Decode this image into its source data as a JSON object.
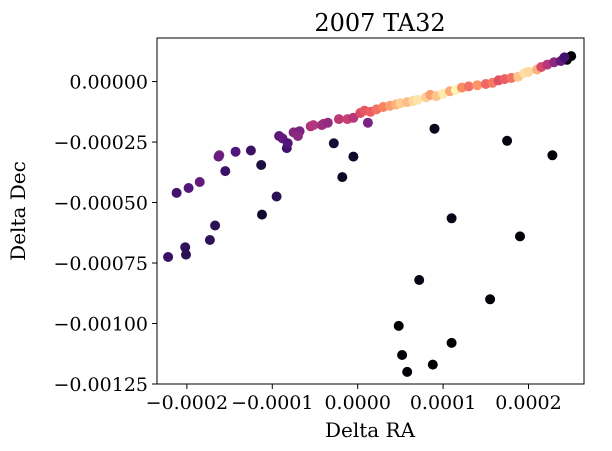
{
  "chart_data": {
    "type": "scatter",
    "title": "2007 TA32",
    "xlabel": "Delta RA",
    "ylabel": "Delta Dec",
    "xlim": [
      -0.000235,
      0.000265
    ],
    "ylim": [
      -0.00125,
      0.00018
    ],
    "x_ticks": [
      -0.0002,
      -0.0001,
      0.0,
      0.0001,
      0.0002
    ],
    "x_tick_labels": [
      "−0.0002",
      "−0.0001",
      "0.0000",
      "0.0001",
      "0.0002"
    ],
    "y_ticks": [
      0.0,
      -0.00025,
      -0.0005,
      -0.00075,
      -0.001,
      -0.00125
    ],
    "y_tick_labels": [
      "0.00000",
      "−0.00025",
      "−0.00050",
      "−0.00075",
      "−0.00100",
      "−0.00125"
    ],
    "grid": false,
    "legend": "none",
    "colormap": "magma",
    "colormap_stops": [
      "#000004",
      "#1c1044",
      "#4f127b",
      "#812581",
      "#b5367a",
      "#e55064",
      "#fb8761",
      "#fec287",
      "#fcfdbf"
    ],
    "points": [
      {
        "x": 0.00025,
        "y": 0.000105,
        "c": 0.0
      },
      {
        "x": 0.000245,
        "y": 9e-05,
        "c": 0.02
      },
      {
        "x": 0.000228,
        "y": -0.000305,
        "c": 0.0
      },
      {
        "x": 0.00019,
        "y": -0.00064,
        "c": 0.0
      },
      {
        "x": 0.000175,
        "y": -0.000245,
        "c": 0.03
      },
      {
        "x": 0.000155,
        "y": -0.0009,
        "c": 0.0
      },
      {
        "x": 0.00011,
        "y": -0.000565,
        "c": 0.04
      },
      {
        "x": 0.00011,
        "y": -0.00108,
        "c": 0.0
      },
      {
        "x": 8.8e-05,
        "y": -0.00117,
        "c": 0.0
      },
      {
        "x": 9e-05,
        "y": -0.000195,
        "c": 0.05
      },
      {
        "x": 7.2e-05,
        "y": -0.00082,
        "c": 0.03
      },
      {
        "x": 5.8e-05,
        "y": -0.0012,
        "c": 0.0
      },
      {
        "x": 5.2e-05,
        "y": -0.00113,
        "c": 0.01
      },
      {
        "x": 4.8e-05,
        "y": -0.00101,
        "c": 0.0
      },
      {
        "x": -1.8e-05,
        "y": -0.000395,
        "c": 0.06
      },
      {
        "x": -5e-06,
        "y": -0.00031,
        "c": 0.08
      },
      {
        "x": -2.8e-05,
        "y": -0.000255,
        "c": 0.1
      },
      {
        "x": -8.3e-05,
        "y": -0.000275,
        "c": 0.22
      },
      {
        "x": -9.5e-05,
        "y": -0.000475,
        "c": 0.16
      },
      {
        "x": -0.000112,
        "y": -0.00055,
        "c": 0.08
      },
      {
        "x": -0.000113,
        "y": -0.000345,
        "c": 0.12
      },
      {
        "x": -0.000125,
        "y": -0.000285,
        "c": 0.2
      },
      {
        "x": -0.000143,
        "y": -0.00029,
        "c": 0.26
      },
      {
        "x": -0.000155,
        "y": -0.00037,
        "c": 0.2
      },
      {
        "x": -0.000162,
        "y": -0.000305,
        "c": 0.35
      },
      {
        "x": -0.000163,
        "y": -0.00031,
        "c": 0.32
      },
      {
        "x": -0.000167,
        "y": -0.000595,
        "c": 0.16
      },
      {
        "x": -0.000173,
        "y": -0.000655,
        "c": 0.18
      },
      {
        "x": -0.000185,
        "y": -0.000415,
        "c": 0.3
      },
      {
        "x": -0.000198,
        "y": -0.00044,
        "c": 0.26
      },
      {
        "x": -0.000202,
        "y": -0.000685,
        "c": 0.18
      },
      {
        "x": -0.000201,
        "y": -0.000715,
        "c": 0.16
      },
      {
        "x": -0.000212,
        "y": -0.00046,
        "c": 0.22
      },
      {
        "x": -0.000222,
        "y": -0.000725,
        "c": 0.2
      },
      {
        "x": -9.2e-05,
        "y": -0.000225,
        "c": 0.28
      },
      {
        "x": -8.8e-05,
        "y": -0.000235,
        "c": 0.3
      },
      {
        "x": -8.2e-05,
        "y": -0.000255,
        "c": 0.26
      },
      {
        "x": -7.5e-05,
        "y": -0.00021,
        "c": 0.38
      },
      {
        "x": -6.8e-05,
        "y": -0.000205,
        "c": 0.36
      },
      {
        "x": -7e-05,
        "y": -0.000225,
        "c": 0.4
      },
      {
        "x": -5.5e-05,
        "y": -0.000185,
        "c": 0.48
      },
      {
        "x": -5.2e-05,
        "y": -0.00018,
        "c": 0.5
      },
      {
        "x": -4.2e-05,
        "y": -0.00018,
        "c": 0.46
      },
      {
        "x": -4e-05,
        "y": -0.000175,
        "c": 0.44
      },
      {
        "x": -3.5e-05,
        "y": -0.00017,
        "c": 0.42
      },
      {
        "x": -2.2e-05,
        "y": -0.000155,
        "c": 0.52
      },
      {
        "x": -1.2e-05,
        "y": -0.000155,
        "c": 0.55
      },
      {
        "x": -5e-06,
        "y": -0.00015,
        "c": 0.5
      },
      {
        "x": 3e-06,
        "y": -0.00013,
        "c": 0.6
      },
      {
        "x": 8e-06,
        "y": -0.00012,
        "c": 0.64
      },
      {
        "x": 1.2e-05,
        "y": -0.00017,
        "c": 0.36
      },
      {
        "x": 1.5e-05,
        "y": -0.000125,
        "c": 0.66
      },
      {
        "x": 2.2e-05,
        "y": -0.000115,
        "c": 0.7
      },
      {
        "x": 3e-05,
        "y": -0.000105,
        "c": 0.74
      },
      {
        "x": 3.8e-05,
        "y": -0.0001,
        "c": 0.8
      },
      {
        "x": 4.5e-05,
        "y": -9.5e-05,
        "c": 0.84
      },
      {
        "x": 5e-05,
        "y": -9e-05,
        "c": 0.9
      },
      {
        "x": 5.8e-05,
        "y": -8.5e-05,
        "c": 0.86
      },
      {
        "x": 6.5e-05,
        "y": -8e-05,
        "c": 0.92
      },
      {
        "x": 7e-05,
        "y": -7.5e-05,
        "c": 0.95
      },
      {
        "x": 8e-05,
        "y": -6.5e-05,
        "c": 0.9
      },
      {
        "x": 8.5e-05,
        "y": -5.5e-05,
        "c": 0.8
      },
      {
        "x": 9.2e-05,
        "y": -6e-05,
        "c": 0.88
      },
      {
        "x": 0.0001,
        "y": -5e-05,
        "c": 0.96
      },
      {
        "x": 0.000108,
        "y": -4e-05,
        "c": 0.82
      },
      {
        "x": 0.000115,
        "y": -3.5e-05,
        "c": 0.98
      },
      {
        "x": 0.000122,
        "y": -2.5e-05,
        "c": 0.76
      },
      {
        "x": 0.00013,
        "y": -2e-05,
        "c": 0.7
      },
      {
        "x": 0.00014,
        "y": -1.5e-05,
        "c": 0.78
      },
      {
        "x": 0.00015,
        "y": -1e-05,
        "c": 0.68
      },
      {
        "x": 0.000158,
        "y": -5e-06,
        "c": 0.72
      },
      {
        "x": 0.000165,
        "y": 5e-06,
        "c": 0.62
      },
      {
        "x": 0.000172,
        "y": 1e-05,
        "c": 0.66
      },
      {
        "x": 0.00018,
        "y": 1.5e-05,
        "c": 0.7
      },
      {
        "x": 0.000188,
        "y": 2e-05,
        "c": 0.88
      },
      {
        "x": 0.000195,
        "y": 3.5e-05,
        "c": 0.94
      },
      {
        "x": 0.0002,
        "y": 4e-05,
        "c": 0.92
      },
      {
        "x": 0.00021,
        "y": 5e-05,
        "c": 0.84
      },
      {
        "x": 0.000215,
        "y": 6e-05,
        "c": 0.6
      },
      {
        "x": 0.000222,
        "y": 7e-05,
        "c": 0.5
      },
      {
        "x": 0.00023,
        "y": 8e-05,
        "c": 0.4
      },
      {
        "x": 0.000238,
        "y": 8.5e-05,
        "c": 0.3
      },
      {
        "x": 0.000242,
        "y": 0.0001,
        "c": 0.22
      }
    ]
  }
}
